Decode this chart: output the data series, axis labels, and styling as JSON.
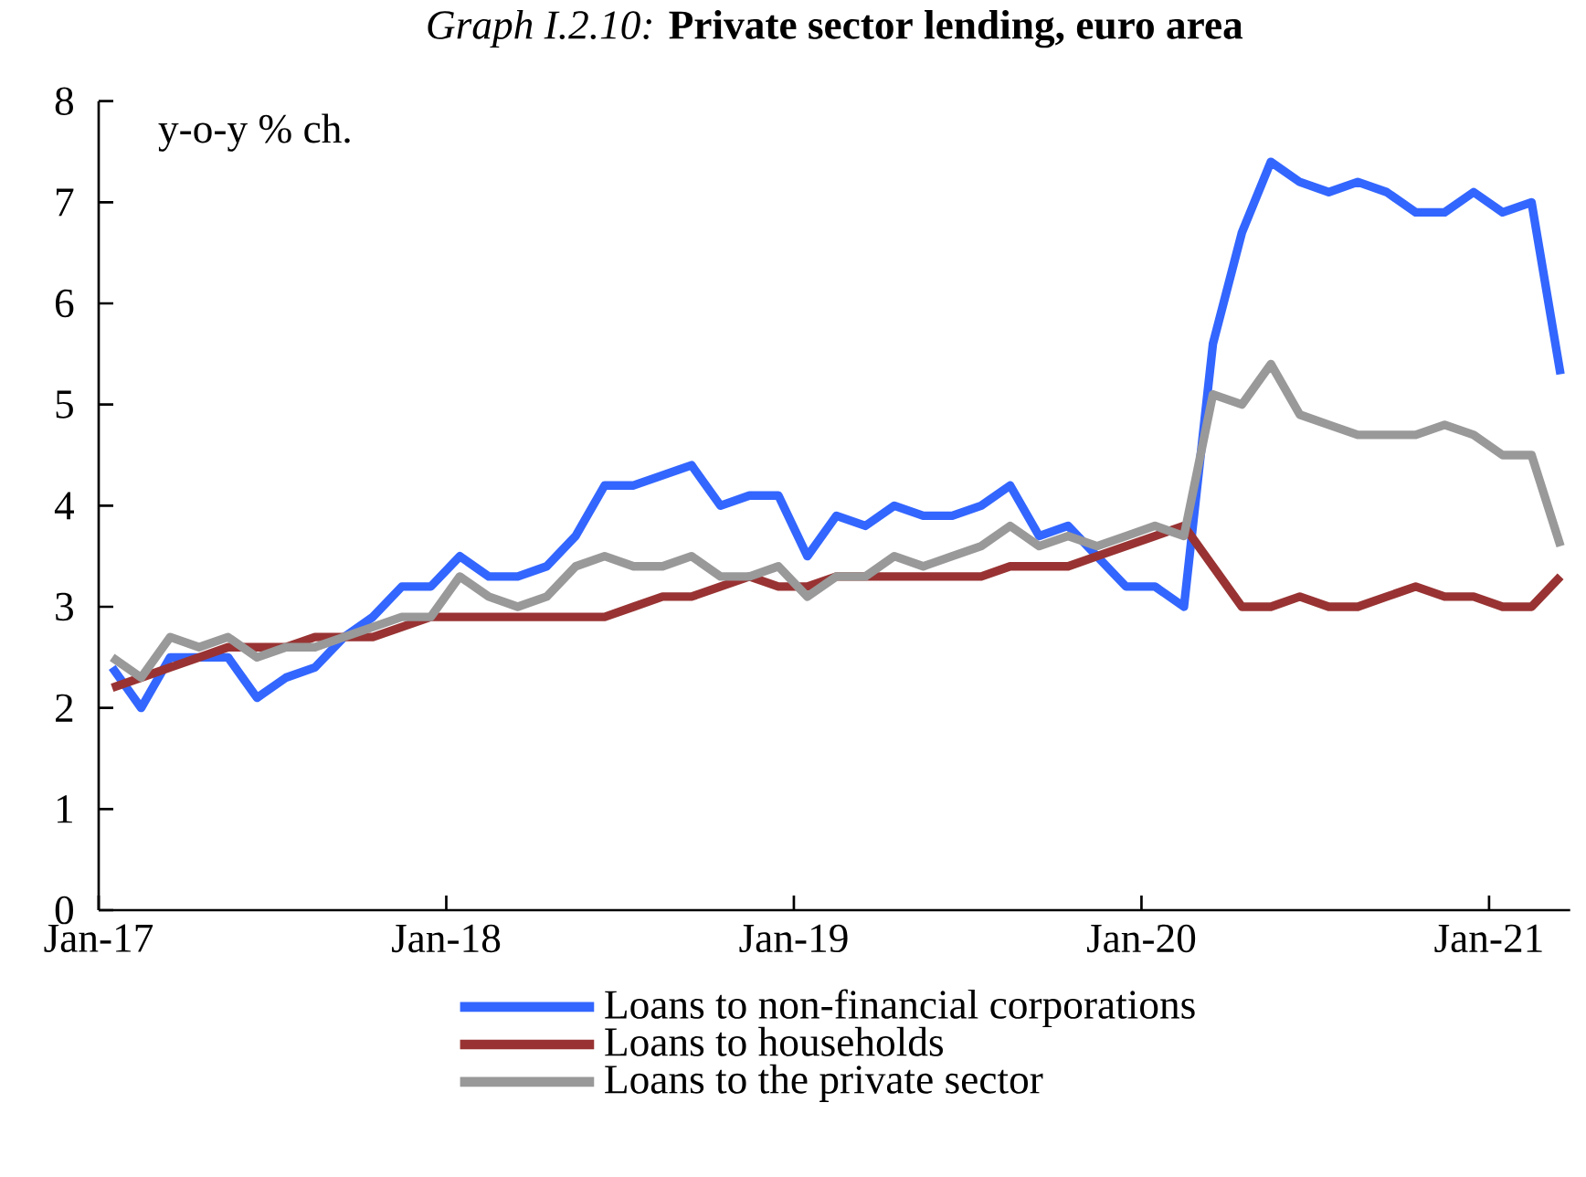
{
  "chart_data": {
    "type": "line",
    "title": "*Graph I.2.10:* **Private sector lending, euro area**",
    "annotations": [
      "y-o-y % ch."
    ],
    "x": [
      "2017-01-15",
      "2017-02-15",
      "2017-03-15",
      "2017-04-15",
      "2017-05-15",
      "2017-06-15",
      "2017-07-15",
      "2017-08-15",
      "2017-09-15",
      "2017-10-15",
      "2017-11-15",
      "2017-12-15",
      "2018-01-15",
      "2018-02-15",
      "2018-03-15",
      "2018-04-15",
      "2018-05-15",
      "2018-06-15",
      "2018-07-15",
      "2018-08-15",
      "2018-09-15",
      "2018-10-15",
      "2018-11-15",
      "2018-12-15",
      "2019-01-15",
      "2019-02-15",
      "2019-03-15",
      "2019-04-15",
      "2019-05-15",
      "2019-06-15",
      "2019-07-15",
      "2019-08-15",
      "2019-09-15",
      "2019-10-15",
      "2019-11-15",
      "2019-12-15",
      "2020-01-15",
      "2020-02-15",
      "2020-03-15",
      "2020-04-15",
      "2020-05-15",
      "2020-06-15",
      "2020-07-15",
      "2020-08-15",
      "2020-09-15",
      "2020-10-15",
      "2020-11-15",
      "2020-12-15",
      "2021-01-15",
      "2021-02-15",
      "2021-03-15"
    ],
    "series": [
      {
        "name": "Loans to non-financial corporations",
        "color": "#3366ff",
        "values": [
          2.4,
          2.0,
          2.5,
          2.5,
          2.5,
          2.1,
          2.3,
          2.4,
          2.7,
          2.9,
          3.2,
          3.2,
          3.5,
          3.3,
          3.3,
          3.4,
          3.7,
          4.2,
          4.2,
          4.3,
          4.4,
          4.0,
          4.1,
          4.1,
          3.5,
          3.9,
          3.8,
          4.0,
          3.9,
          3.9,
          4.0,
          4.2,
          3.7,
          3.8,
          3.5,
          3.2,
          3.2,
          3.0,
          5.6,
          6.7,
          7.4,
          7.2,
          7.1,
          7.2,
          7.1,
          6.9,
          6.9,
          7.1,
          6.9,
          7.0,
          5.3
        ]
      },
      {
        "name": "Loans to households",
        "color": "#993333",
        "values": [
          2.2,
          2.3,
          2.4,
          2.5,
          2.6,
          2.6,
          2.6,
          2.7,
          2.7,
          2.7,
          2.8,
          2.9,
          2.9,
          2.9,
          2.9,
          2.9,
          2.9,
          2.9,
          3.0,
          3.1,
          3.1,
          3.2,
          3.3,
          3.2,
          3.2,
          3.3,
          3.3,
          3.3,
          3.3,
          3.3,
          3.3,
          3.4,
          3.4,
          3.4,
          3.5,
          3.6,
          3.7,
          3.8,
          3.4,
          3.0,
          3.0,
          3.1,
          3.0,
          3.0,
          3.1,
          3.2,
          3.1,
          3.1,
          3.0,
          3.0,
          3.3
        ]
      },
      {
        "name": "Loans to the private sector",
        "color": "#999999",
        "values": [
          2.5,
          2.3,
          2.7,
          2.6,
          2.7,
          2.5,
          2.6,
          2.6,
          2.7,
          2.8,
          2.9,
          2.9,
          3.3,
          3.1,
          3.0,
          3.1,
          3.4,
          3.5,
          3.4,
          3.4,
          3.5,
          3.3,
          3.3,
          3.4,
          3.1,
          3.3,
          3.3,
          3.5,
          3.4,
          3.5,
          3.6,
          3.8,
          3.6,
          3.7,
          3.6,
          3.7,
          3.8,
          3.7,
          5.1,
          5.0,
          5.4,
          4.9,
          4.8,
          4.7,
          4.7,
          4.7,
          4.8,
          4.7,
          4.5,
          4.5,
          3.6
        ]
      }
    ],
    "xlim": [
      "2017-01-01",
      "2021-03-25"
    ],
    "xticks": [
      {
        "value": "2017-01-01",
        "label": "Jan-17"
      },
      {
        "value": "2018-01-01",
        "label": "Jan-18"
      },
      {
        "value": "2019-01-01",
        "label": "Jan-19"
      },
      {
        "value": "2020-01-01",
        "label": "Jan-20"
      },
      {
        "value": "2021-01-01",
        "label": "Jan-21"
      }
    ],
    "ylim": [
      0,
      8
    ],
    "yticks": [
      0,
      1,
      2,
      3,
      4,
      5,
      6,
      7,
      8
    ],
    "legend": "bottom",
    "grid": false,
    "line_style": "solid"
  }
}
